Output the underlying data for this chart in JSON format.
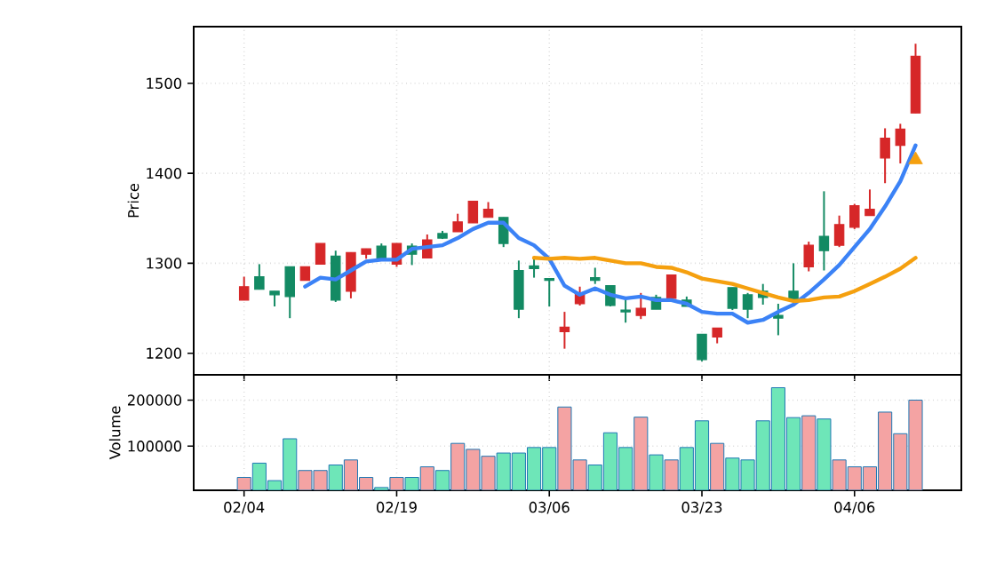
{
  "chart_data": [
    {
      "type": "candlestick",
      "ylabel": "Price",
      "categories": [
        null,
        null,
        null,
        null,
        null,
        null,
        null,
        null,
        null,
        null,
        null,
        null,
        null,
        null,
        null,
        null,
        null,
        null,
        null,
        null,
        null,
        null,
        null,
        null,
        null,
        null,
        null,
        null,
        null,
        null,
        null,
        null,
        null,
        null,
        null,
        null,
        null,
        null,
        null,
        null,
        null,
        null,
        null,
        null,
        null
      ],
      "ohlc": [
        [
          1259,
          1285,
          1259,
          1274
        ],
        [
          1285,
          1299,
          1271,
          1271
        ],
        [
          1269,
          1269,
          1252,
          1265
        ],
        [
          1296,
          1296,
          1239,
          1263
        ],
        [
          1281,
          1296,
          1281,
          1296
        ],
        [
          1299,
          1322,
          1299,
          1322
        ],
        [
          1308,
          1314,
          1257,
          1259
        ],
        [
          1269,
          1312,
          1261,
          1312
        ],
        [
          1310,
          1316,
          1305,
          1316
        ],
        [
          1319,
          1322,
          1303,
          1303
        ],
        [
          1299,
          1322,
          1296,
          1322
        ],
        [
          1319,
          1322,
          1298,
          1310
        ],
        [
          1306,
          1332,
          1306,
          1326
        ],
        [
          1333,
          1336,
          1327,
          1328
        ],
        [
          1335,
          1355,
          1335,
          1346
        ],
        [
          1345,
          1369,
          1345,
          1369
        ],
        [
          1351,
          1368,
          1351,
          1360
        ],
        [
          1351,
          1351,
          1318,
          1322
        ],
        [
          1292,
          1303,
          1239,
          1249
        ],
        [
          1297,
          1305,
          1284,
          1294
        ],
        [
          1283,
          1283,
          1252,
          1281
        ],
        [
          1224,
          1246,
          1205,
          1229
        ],
        [
          1255,
          1274,
          1253,
          1267
        ],
        [
          1284,
          1295,
          1277,
          1281
        ],
        [
          1275,
          1275,
          1252,
          1253
        ],
        [
          1248,
          1259,
          1234,
          1246
        ],
        [
          1242,
          1267,
          1238,
          1250
        ],
        [
          1262,
          1265,
          1249,
          1249
        ],
        [
          1261,
          1287,
          1261,
          1287
        ],
        [
          1259,
          1263,
          1252,
          1252
        ],
        [
          1221,
          1221,
          1191,
          1193
        ],
        [
          1218,
          1228,
          1211,
          1228
        ],
        [
          1273,
          1273,
          1248,
          1250
        ],
        [
          1265,
          1267,
          1239,
          1249
        ],
        [
          1269,
          1277,
          1254,
          1262
        ],
        [
          1242,
          1255,
          1220,
          1239
        ],
        [
          1269,
          1300,
          1255,
          1259
        ],
        [
          1296,
          1324,
          1291,
          1320
        ],
        [
          1330,
          1380,
          1292,
          1314
        ],
        [
          1320,
          1353,
          1318,
          1343
        ],
        [
          1340,
          1366,
          1338,
          1364
        ],
        [
          1353,
          1382,
          1353,
          1360
        ],
        [
          1417,
          1450,
          1389,
          1439
        ],
        [
          1431,
          1455,
          1411,
          1449
        ],
        [
          1467,
          1544,
          1467,
          1530
        ]
      ],
      "colors": [
        "#d62728",
        "#138a63",
        "#138a63",
        "#138a63",
        "#d62728",
        "#d62728",
        "#138a63",
        "#d62728",
        "#d62728",
        "#138a63",
        "#d62728",
        "#138a63",
        "#d62728",
        "#138a63",
        "#d62728",
        "#d62728",
        "#d62728",
        "#138a63",
        "#138a63",
        "#138a63",
        "#138a63",
        "#d62728",
        "#d62728",
        "#138a63",
        "#138a63",
        "#138a63",
        "#d62728",
        "#138a63",
        "#d62728",
        "#138a63",
        "#138a63",
        "#d62728",
        "#138a63",
        "#138a63",
        "#138a63",
        "#138a63",
        "#138a63",
        "#d62728",
        "#138a63",
        "#d62728",
        "#d62728",
        "#d62728",
        "#d62728",
        "#d62728",
        "#d62728"
      ],
      "series": [
        {
          "type": "line",
          "color": "#3b82f6",
          "values": [
            null,
            null,
            null,
            null,
            1274,
            1284,
            1282,
            1292,
            1302,
            1304,
            1304,
            1316,
            1318,
            1320,
            1328,
            1338,
            1345,
            1345,
            1328,
            1320,
            1305,
            1275,
            1265,
            1272,
            1265,
            1261,
            1263,
            1259,
            1259,
            1255,
            1246,
            1244,
            1244,
            1234,
            1237,
            1246,
            1254,
            1267,
            1282,
            1298,
            1318,
            1338,
            1363,
            1391,
            1431
          ]
        },
        {
          "type": "line",
          "color": "#f5a00f",
          "values": [
            null,
            null,
            null,
            null,
            null,
            null,
            null,
            null,
            null,
            null,
            null,
            null,
            null,
            null,
            null,
            null,
            null,
            null,
            null,
            1306,
            1305,
            1306,
            1305,
            1306,
            1303,
            1300,
            1300,
            1296,
            1295,
            1290,
            1283,
            1280,
            1277,
            1272,
            1267,
            1262,
            1258,
            1259,
            1262,
            1263,
            1269,
            1277,
            1285,
            1294,
            1306
          ]
        },
        {
          "type": "scatter",
          "marker": "triangle",
          "color": "#f5a00f",
          "values": [
            null,
            null,
            null,
            null,
            null,
            null,
            null,
            null,
            null,
            null,
            null,
            null,
            null,
            null,
            null,
            null,
            null,
            null,
            null,
            null,
            null,
            null,
            null,
            null,
            null,
            null,
            null,
            null,
            null,
            null,
            null,
            null,
            null,
            null,
            null,
            null,
            null,
            null,
            null,
            null,
            null,
            null,
            null,
            null,
            1415
          ]
        }
      ],
      "ylim": [
        1176,
        1563
      ],
      "yticks": [
        1200,
        1300,
        1400,
        1500
      ],
      "grid": true,
      "tick_labels": "y"
    },
    {
      "type": "bar",
      "ylabel": "Volume",
      "categories": [
        "02/04",
        null,
        null,
        null,
        null,
        null,
        null,
        null,
        null,
        null,
        "02/19",
        null,
        null,
        null,
        null,
        null,
        null,
        null,
        null,
        null,
        "03/06",
        null,
        null,
        null,
        null,
        null,
        null,
        null,
        null,
        null,
        "03/23",
        null,
        null,
        null,
        null,
        null,
        null,
        null,
        null,
        null,
        "04/06",
        null,
        null,
        null,
        null
      ],
      "values": [
        32000,
        63000,
        25000,
        116000,
        47000,
        47000,
        59000,
        70000,
        32000,
        10000,
        32000,
        32000,
        55000,
        47000,
        106000,
        93000,
        78000,
        85000,
        85000,
        97000,
        97000,
        185000,
        70000,
        59000,
        129000,
        97000,
        163000,
        81000,
        70000,
        97000,
        155000,
        106000,
        74000,
        70000,
        155000,
        227000,
        162000,
        166000,
        159000,
        70000,
        55000,
        55000,
        174000,
        127000,
        200000
      ],
      "colors": [
        "#f4a3a3",
        "#6ee6b8",
        "#6ee6b8",
        "#6ee6b8",
        "#f4a3a3",
        "#f4a3a3",
        "#6ee6b8",
        "#f4a3a3",
        "#f4a3a3",
        "#6ee6b8",
        "#f4a3a3",
        "#6ee6b8",
        "#f4a3a3",
        "#6ee6b8",
        "#f4a3a3",
        "#f4a3a3",
        "#f4a3a3",
        "#6ee6b8",
        "#6ee6b8",
        "#6ee6b8",
        "#6ee6b8",
        "#f4a3a3",
        "#f4a3a3",
        "#6ee6b8",
        "#6ee6b8",
        "#6ee6b8",
        "#f4a3a3",
        "#6ee6b8",
        "#f4a3a3",
        "#6ee6b8",
        "#6ee6b8",
        "#f4a3a3",
        "#6ee6b8",
        "#6ee6b8",
        "#6ee6b8",
        "#6ee6b8",
        "#6ee6b8",
        "#f4a3a3",
        "#6ee6b8",
        "#f4a3a3",
        "#f4a3a3",
        "#f4a3a3",
        "#f4a3a3",
        "#f4a3a3",
        "#f4a3a3"
      ],
      "ylim": [
        4000,
        255000
      ],
      "yticks": [
        100000,
        200000
      ],
      "grid": true
    }
  ]
}
